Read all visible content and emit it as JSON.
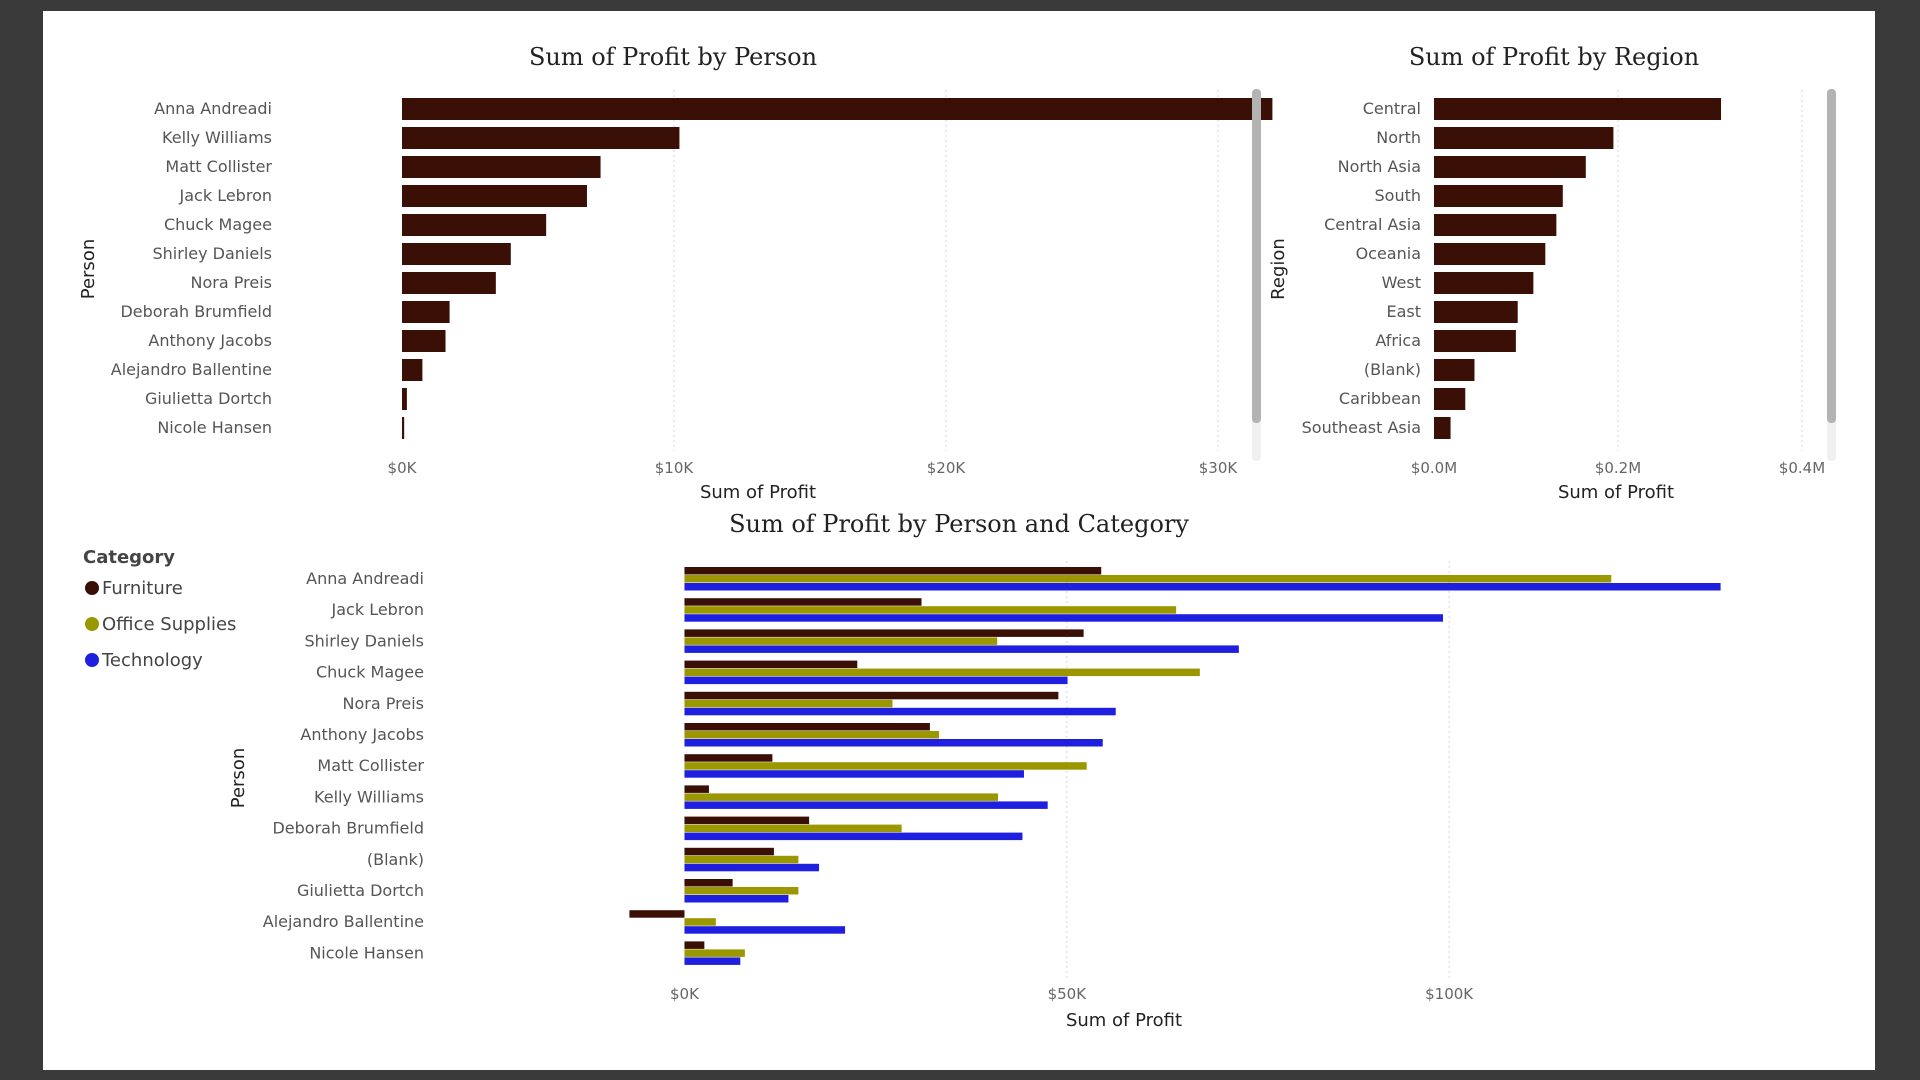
{
  "colors": {
    "furniture": "#3a0f05",
    "office_supplies": "#9b9700",
    "technology": "#1f1fe0",
    "single_bar": "#3a0f05"
  },
  "chart_data": [
    {
      "type": "bar",
      "orientation": "horizontal",
      "title": "Sum of Profit by Person",
      "xlabel": "Sum of Profit",
      "ylabel": "Person",
      "xlim": [
        0,
        35000
      ],
      "xticks": [
        0,
        10000,
        20000,
        30000
      ],
      "xtick_labels": [
        "$0K",
        "$10K",
        "$20K",
        "$30K"
      ],
      "categories": [
        "Anna Andreadi",
        "Kelly Williams",
        "Matt Collister",
        "Jack Lebron",
        "Chuck Magee",
        "Shirley Daniels",
        "Nora Preis",
        "Deborah Brumfield",
        "Anthony Jacobs",
        "Alejandro Ballentine",
        "Giulietta Dortch",
        "Nicole Hansen"
      ],
      "values": [
        32000,
        10200,
        7300,
        6800,
        5300,
        4000,
        3450,
        1750,
        1600,
        750,
        180,
        80
      ],
      "grid": true,
      "scrollbar": true
    },
    {
      "type": "bar",
      "orientation": "horizontal",
      "title": "Sum of Profit by Region",
      "xlabel": "Sum of Profit",
      "ylabel": "Region",
      "xlim": [
        0,
        400000
      ],
      "xticks": [
        0,
        200000,
        400000
      ],
      "xtick_labels": [
        "$0.0M",
        "$0.2M",
        "$0.4M"
      ],
      "categories": [
        "Central",
        "North",
        "North Asia",
        "South",
        "Central Asia",
        "Oceania",
        "West",
        "East",
        "Africa",
        "(Blank)",
        "Caribbean",
        "Southeast Asia"
      ],
      "values": [
        312000,
        195000,
        165000,
        140000,
        133000,
        121000,
        108000,
        91000,
        89000,
        44000,
        34000,
        18000
      ],
      "grid": true,
      "scrollbar": true
    },
    {
      "type": "bar",
      "orientation": "horizontal",
      "grouped": true,
      "title": "Sum of Profit by Person and Category",
      "xlabel": "Sum of Profit",
      "ylabel": "Person",
      "xlim": [
        -10000,
        140000
      ],
      "xticks": [
        0,
        50000,
        100000
      ],
      "xtick_labels": [
        "$0K",
        "$50K",
        "$100K"
      ],
      "legend_title": "Category",
      "legend_position": "top-left",
      "categories": [
        "Anna Andreadi",
        "Jack Lebron",
        "Shirley Daniels",
        "Chuck Magee",
        "Nora Preis",
        "Anthony Jacobs",
        "Matt Collister",
        "Kelly Williams",
        "Deborah Brumfield",
        "(Blank)",
        "Giulietta Dortch",
        "Alejandro Ballentine",
        "Nicole Hansen"
      ],
      "series": [
        {
          "name": "Furniture",
          "color_key": "furniture",
          "values": [
            54500,
            31000,
            52200,
            22600,
            48900,
            32100,
            11500,
            3200,
            16300,
            11700,
            6300,
            -7200,
            2600
          ]
        },
        {
          "name": "Office Supplies",
          "color_key": "office_supplies",
          "values": [
            121200,
            64300,
            40900,
            67400,
            27200,
            33300,
            52600,
            41000,
            28400,
            14900,
            14900,
            4100,
            7900
          ]
        },
        {
          "name": "Technology",
          "color_key": "technology",
          "values": [
            135500,
            99200,
            72500,
            50100,
            56400,
            54700,
            44400,
            47500,
            44200,
            17600,
            13600,
            21000,
            7300
          ]
        }
      ],
      "grid": true
    }
  ]
}
